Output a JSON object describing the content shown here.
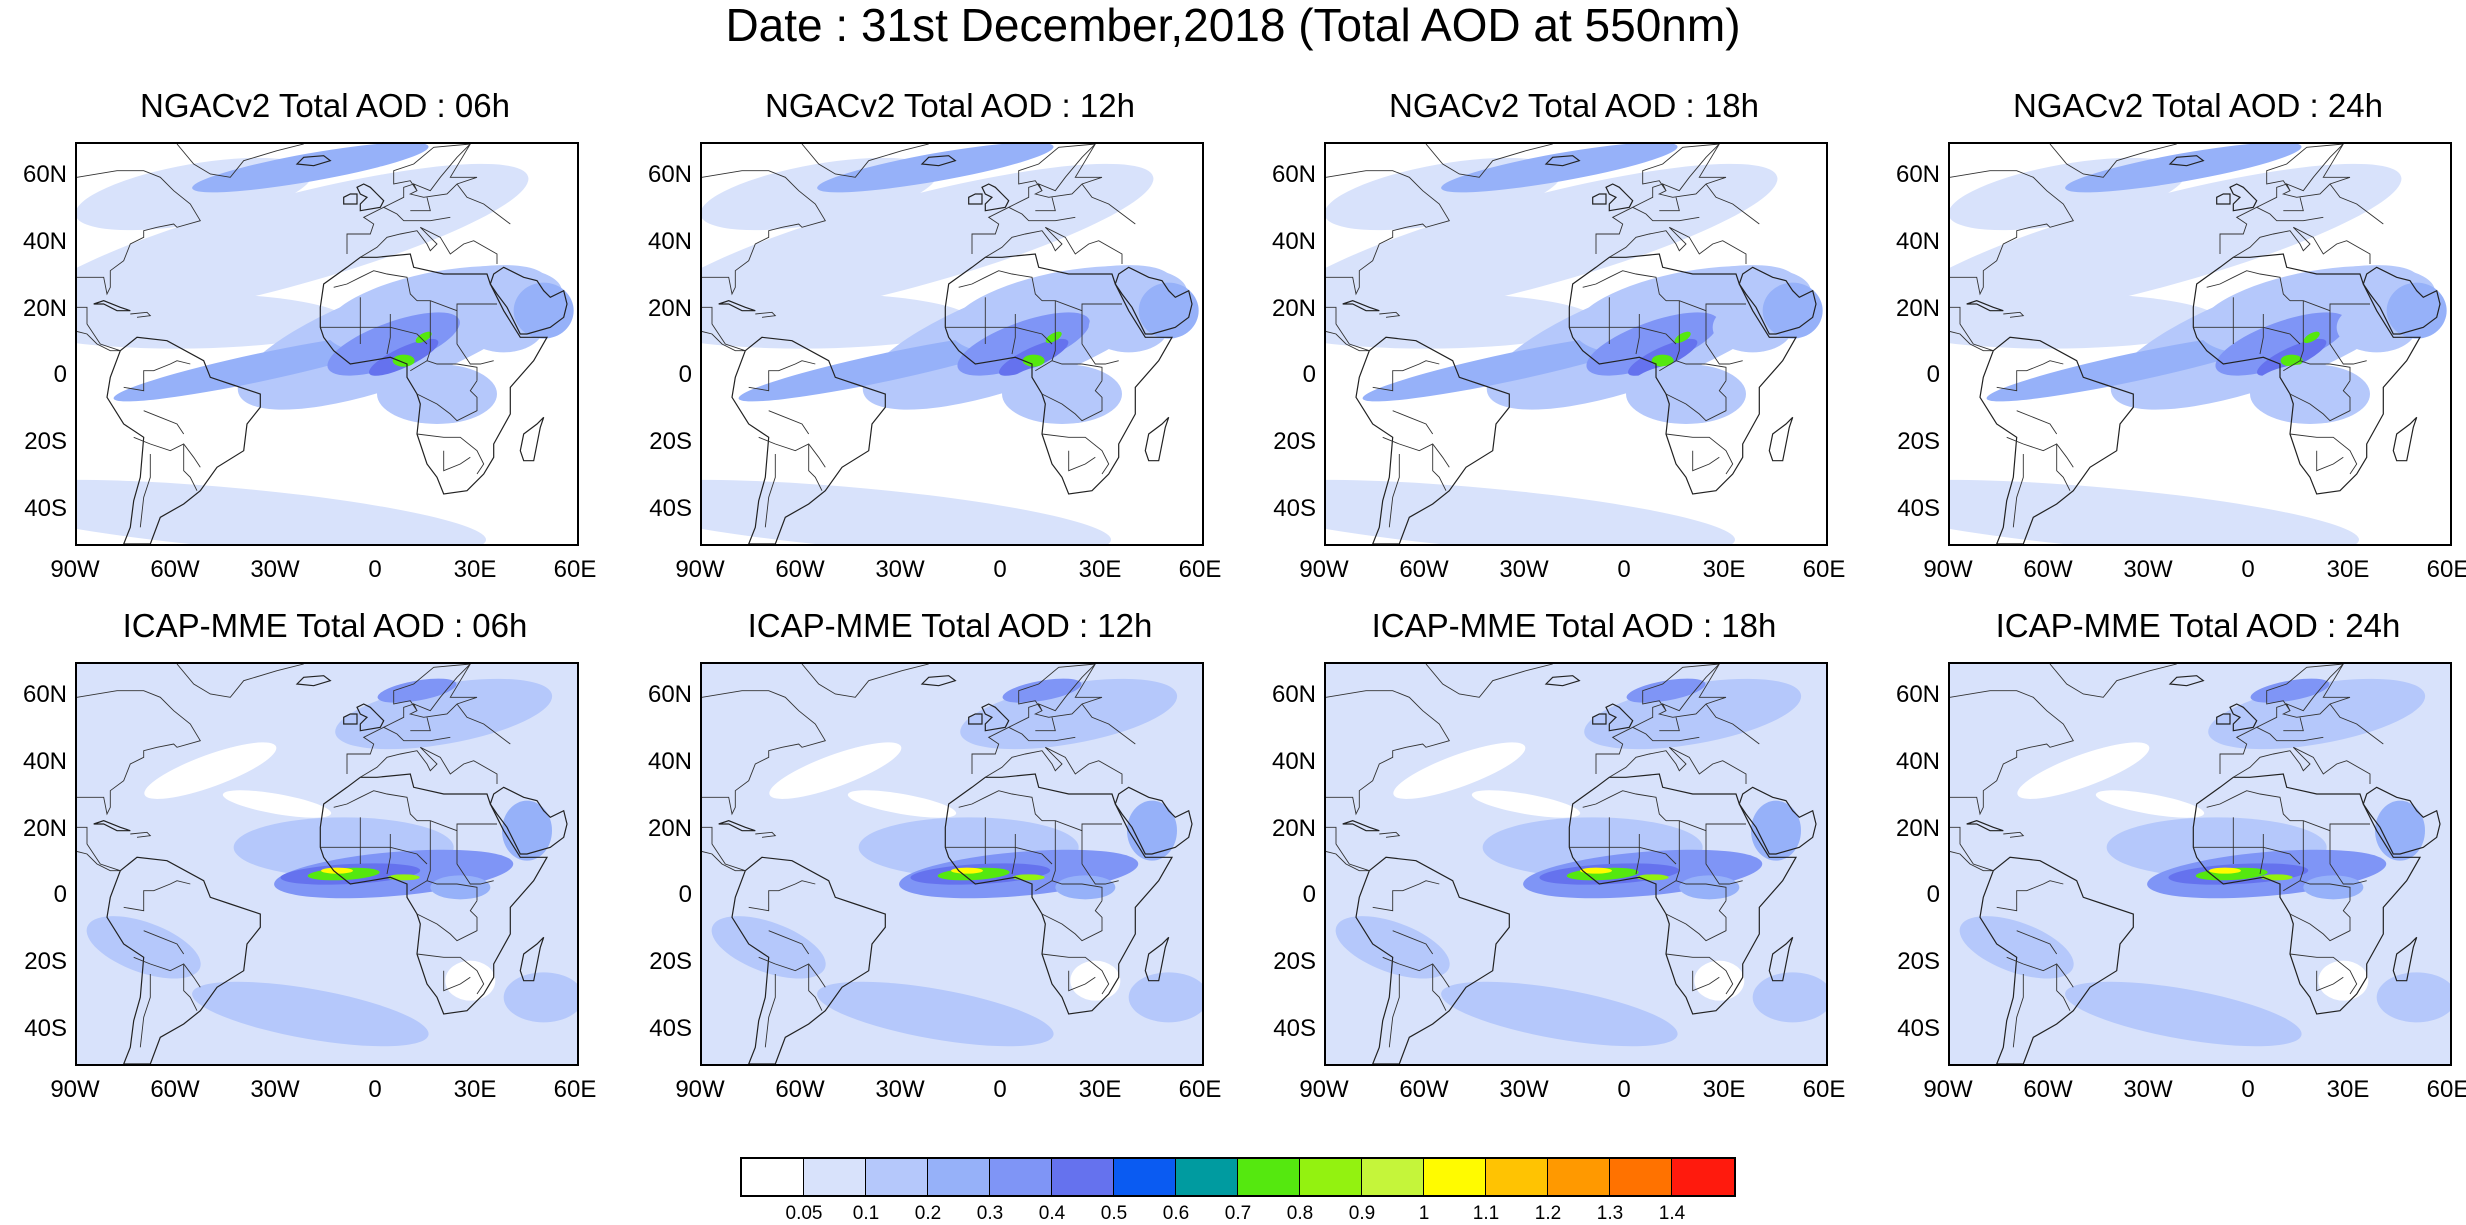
{
  "title": "Date : 31st December,2018 (Total AOD at 550nm)",
  "lat_ticks": [
    "60N",
    "40N",
    "20N",
    "0",
    "20S",
    "40S"
  ],
  "lon_ticks": [
    "90W",
    "60W",
    "30W",
    "0",
    "30E",
    "60E"
  ],
  "map_extent": {
    "lon_min": -90,
    "lon_max": 60,
    "lat_min": -50,
    "lat_max": 70
  },
  "panels": [
    {
      "title": "NGACv2 Total AOD : 06h",
      "model": "NGACv2",
      "lead": "06h"
    },
    {
      "title": "NGACv2 Total AOD : 12h",
      "model": "NGACv2",
      "lead": "12h"
    },
    {
      "title": "NGACv2 Total AOD : 18h",
      "model": "NGACv2",
      "lead": "18h"
    },
    {
      "title": "NGACv2 Total AOD : 24h",
      "model": "NGACv2",
      "lead": "24h"
    },
    {
      "title": "ICAP-MME Total AOD : 06h",
      "model": "ICAP-MME",
      "lead": "06h"
    },
    {
      "title": "ICAP-MME Total AOD : 12h",
      "model": "ICAP-MME",
      "lead": "12h"
    },
    {
      "title": "ICAP-MME Total AOD : 18h",
      "model": "ICAP-MME",
      "lead": "18h"
    },
    {
      "title": "ICAP-MME Total AOD : 24h",
      "model": "ICAP-MME",
      "lead": "24h"
    }
  ],
  "colorbar": {
    "labels": [
      "0.05",
      "0.1",
      "0.2",
      "0.3",
      "0.4",
      "0.5",
      "0.6",
      "0.7",
      "0.8",
      "0.9",
      "1",
      "1.1",
      "1.2",
      "1.3",
      "1.4"
    ],
    "colors": [
      "#ffffff",
      "#d8e2fb",
      "#b5c8fb",
      "#96b1f9",
      "#7f95f6",
      "#6572ee",
      "#0a5bf2",
      "#009ba0",
      "#55e80f",
      "#93f210",
      "#c5f53a",
      "#fffb00",
      "#ffc302",
      "#ff9900",
      "#ff7200",
      "#ff1a0d"
    ]
  }
}
